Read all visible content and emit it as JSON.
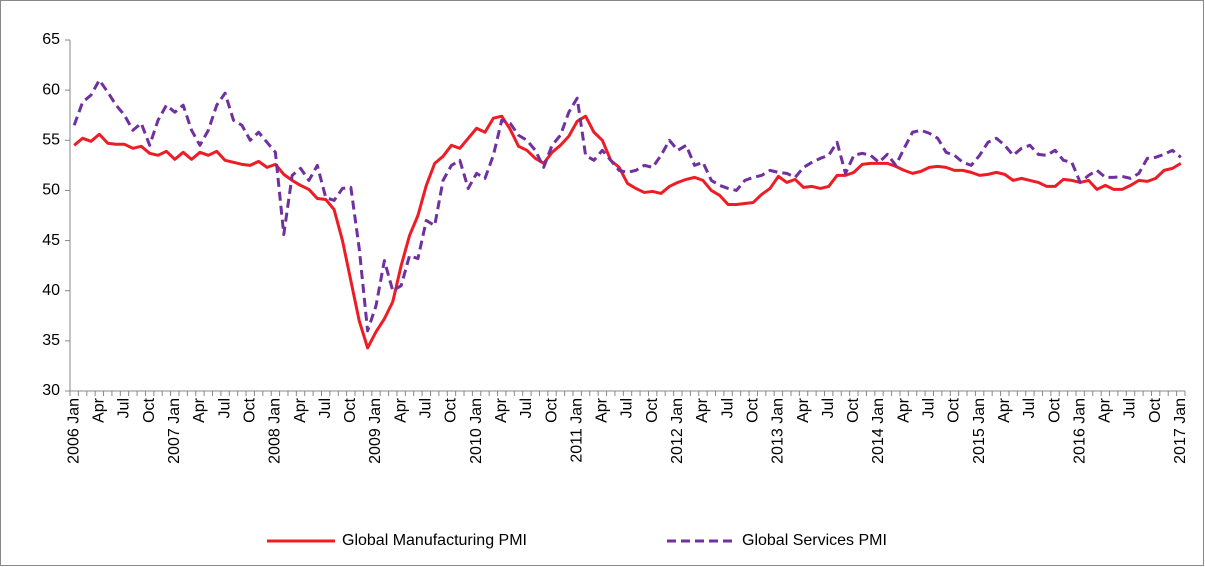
{
  "chart_data": {
    "type": "line",
    "categories": [
      "2006 Jan",
      null,
      null,
      "Apr",
      null,
      null,
      "Jul",
      null,
      null,
      "Oct",
      null,
      null,
      "2007 Jan",
      null,
      null,
      "Apr",
      null,
      null,
      "Jul",
      null,
      null,
      "Oct",
      null,
      null,
      "2008 Jan",
      null,
      null,
      "Apr",
      null,
      null,
      "Jul",
      null,
      null,
      "Oct",
      null,
      null,
      "2009 Jan",
      null,
      null,
      "Apr",
      null,
      null,
      "Jul",
      null,
      null,
      "Oct",
      null,
      null,
      "2010 Jan",
      null,
      null,
      "Apr",
      null,
      null,
      "Jul",
      null,
      null,
      "Oct",
      null,
      null,
      "2011 Jan",
      null,
      null,
      "Apr",
      null,
      null,
      "Jul",
      null,
      null,
      "Oct",
      null,
      null,
      "2012 Jan",
      null,
      null,
      "Apr",
      null,
      null,
      "Jul",
      null,
      null,
      "Oct",
      null,
      null,
      "2013 Jan",
      null,
      null,
      "Apr",
      null,
      null,
      "Jul",
      null,
      null,
      "Oct",
      null,
      null,
      "2014 Jan",
      null,
      null,
      "Apr",
      null,
      null,
      "Jul",
      null,
      null,
      "Oct",
      null,
      null,
      "2015 Jan",
      null,
      null,
      "Apr",
      null,
      null,
      "Jul",
      null,
      null,
      "Oct",
      null,
      null,
      "2016 Jan",
      null,
      null,
      "Apr",
      null,
      null,
      "Jul",
      null,
      null,
      "Oct",
      null,
      null,
      "2017 Jan"
    ],
    "series": [
      {
        "name": "Global Manufacturing PMI",
        "color": "#ee1c25",
        "line_style": "solid",
        "values": [
          54.5,
          55.2,
          54.9,
          55.6,
          54.7,
          54.6,
          54.6,
          54.2,
          54.4,
          53.7,
          53.5,
          53.9,
          53.1,
          53.8,
          53.1,
          53.8,
          53.5,
          53.9,
          53.0,
          52.8,
          52.6,
          52.5,
          52.9,
          52.3,
          52.6,
          51.6,
          51.0,
          50.5,
          50.1,
          49.2,
          49.1,
          48.1,
          45.0,
          41.0,
          37.0,
          34.3,
          35.9,
          37.2,
          38.9,
          42.5,
          45.5,
          47.5,
          50.5,
          52.7,
          53.4,
          54.5,
          54.2,
          55.2,
          56.2,
          55.8,
          57.2,
          57.4,
          56.1,
          54.4,
          54.0,
          53.2,
          52.7,
          53.8,
          54.5,
          55.4,
          56.9,
          57.4,
          55.8,
          55.0,
          53.0,
          52.3,
          50.7,
          50.2,
          49.8,
          49.9,
          49.7,
          50.4,
          50.8,
          51.1,
          51.3,
          51.0,
          50.0,
          49.5,
          48.6,
          48.6,
          48.7,
          48.8,
          49.6,
          50.2,
          51.4,
          50.8,
          51.1,
          50.3,
          50.4,
          50.2,
          50.4,
          51.5,
          51.5,
          51.8,
          52.6,
          52.7,
          52.7,
          52.7,
          52.4,
          52.0,
          51.7,
          51.9,
          52.3,
          52.4,
          52.3,
          52.0,
          52.0,
          51.8,
          51.5,
          51.6,
          51.8,
          51.6,
          51.0,
          51.2,
          51.0,
          50.8,
          50.4,
          50.4,
          51.1,
          51.0,
          50.8,
          51.0,
          50.1,
          50.5,
          50.1,
          50.1,
          50.5,
          51.0,
          50.9,
          51.2,
          52.0,
          52.2,
          52.7
        ]
      },
      {
        "name": "Global Services PMI",
        "color": "#7030a0",
        "line_style": "dashed",
        "values": [
          56.5,
          58.8,
          59.5,
          61.0,
          59.8,
          58.5,
          57.5,
          56.0,
          56.7,
          54.5,
          57.0,
          58.5,
          57.8,
          58.5,
          56.0,
          54.5,
          56.0,
          58.5,
          59.7,
          57.0,
          56.5,
          55.0,
          55.8,
          54.8,
          53.8,
          45.6,
          51.5,
          52.2,
          51.0,
          52.5,
          49.3,
          49.0,
          50.2,
          50.3,
          44.2,
          36.0,
          38.5,
          43.0,
          40.0,
          40.5,
          43.5,
          43.2,
          47.0,
          46.5,
          51.0,
          52.5,
          53.0,
          50.2,
          51.7,
          51.2,
          53.5,
          57.0,
          56.7,
          55.5,
          55.0,
          54.0,
          52.3,
          54.5,
          55.5,
          57.8,
          59.2,
          53.5,
          53.0,
          54.0,
          53.0,
          52.0,
          51.8,
          52.0,
          52.5,
          52.3,
          53.5,
          55.0,
          54.0,
          54.5,
          52.5,
          52.8,
          51.0,
          50.5,
          50.2,
          50.0,
          51.0,
          51.3,
          51.5,
          52.0,
          51.8,
          51.7,
          51.3,
          52.3,
          52.8,
          53.2,
          53.5,
          54.8,
          51.7,
          53.5,
          53.7,
          53.5,
          52.8,
          53.6,
          52.5,
          54.2,
          55.8,
          56.0,
          55.7,
          55.2,
          53.8,
          53.5,
          52.8,
          52.5,
          53.5,
          54.8,
          55.2,
          54.5,
          53.5,
          54.2,
          54.5,
          53.6,
          53.5,
          54.0,
          53.0,
          52.8,
          50.8,
          51.5,
          52.0,
          51.3,
          51.3,
          51.4,
          51.2,
          51.7,
          53.2,
          53.3,
          53.6,
          54.0,
          53.3
        ]
      }
    ],
    "ylim": [
      30,
      65
    ],
    "yticks": [
      30,
      35,
      40,
      45,
      50,
      55,
      60,
      65
    ],
    "grid": false,
    "legend": "bottom"
  }
}
